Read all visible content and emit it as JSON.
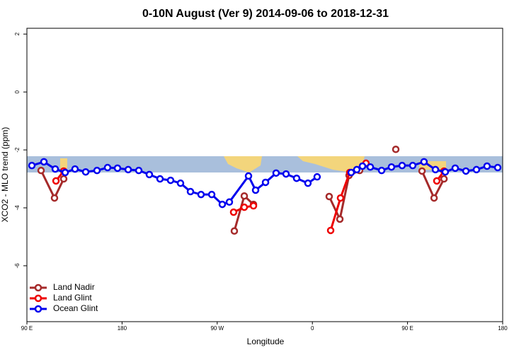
{
  "chart_data": {
    "type": "line",
    "title": "0-10N August (Ver 9)   2014-09-06 to 2018-12-31",
    "x_label": "Longitude",
    "y_label": "XCO2 - MLO trend (ppm)",
    "xlim": [
      90,
      540
    ],
    "xticks": [
      {
        "value": 90,
        "label": "90 E"
      },
      180,
      {
        "value": 270,
        "label": "90 W"
      },
      {
        "value": 360,
        "label": "0"
      },
      {
        "value": 450,
        "label": "90 E"
      },
      {
        "value": 540,
        "label": "180"
      }
    ],
    "ylim": [
      -7.93,
      2.2
    ],
    "yticks": [
      2,
      0,
      -2,
      -4,
      -6
    ],
    "legend": "bottomleft",
    "series": [
      {
        "name": "Land Nadir",
        "color": "#a52a2a",
        "x": [
          103.4,
          116.1,
          124.8,
          null,
          286.2,
          295.6,
          304.3,
          null,
          375.9,
          386.0,
          394.7,
          404.7,
          null,
          438.9,
          null,
          463.7,
          475.1,
          484.5
        ],
        "values": [
          -2.71,
          -3.66,
          -3.0,
          null,
          -4.8,
          -3.59,
          -3.88,
          null,
          -3.61,
          -4.39,
          -2.88,
          -2.71,
          null,
          -1.98,
          null,
          -2.73,
          -3.66,
          -3.0
        ]
      },
      {
        "name": "Land Glint",
        "color": "#ee0000",
        "x": [
          117.5,
          124.8,
          null,
          285.5,
          295.6,
          304.3,
          null,
          377.3,
          386.6,
          395.3,
          410.7,
          null,
          477.7,
          484.5
        ],
        "values": [
          -3.07,
          -2.73,
          null,
          -4.15,
          -3.98,
          -3.93,
          null,
          -4.78,
          -3.66,
          -2.78,
          -2.46,
          null,
          -3.07,
          -2.73
        ]
      },
      {
        "name": "Ocean Glint",
        "color": "#0000ee",
        "x": [
          94.7,
          106.1,
          116.8,
          126.2,
          135.5,
          145.6,
          156.3,
          166.3,
          175.7,
          185.8,
          195.8,
          205.8,
          215.9,
          225.9,
          235.3,
          244.7,
          254.7,
          264.8,
          274.8,
          281.5,
          299.6,
          306.3,
          315.7,
          325.7,
          335.1,
          345.1,
          355.8,
          364.5,
          null,
          396.7,
          402.0,
          407.4,
          414.8,
          425.5,
          434.8,
          444.9,
          454.9,
          465.6,
          476.4,
          485.7,
          495.1,
          505.2,
          515.2,
          525.2,
          535.3
        ],
        "values": [
          -2.54,
          -2.41,
          -2.66,
          -2.78,
          -2.66,
          -2.76,
          -2.71,
          -2.61,
          -2.63,
          -2.68,
          -2.71,
          -2.85,
          -3.0,
          -3.05,
          -3.15,
          -3.44,
          -3.54,
          -3.54,
          -3.88,
          -3.8,
          -2.9,
          -3.39,
          -3.12,
          -2.8,
          -2.83,
          -2.98,
          -3.15,
          -2.93,
          null,
          -2.78,
          -2.68,
          -2.56,
          -2.59,
          -2.71,
          -2.59,
          -2.54,
          -2.54,
          -2.41,
          -2.68,
          -2.76,
          -2.63,
          -2.73,
          -2.68,
          -2.56,
          -2.61
        ]
      }
    ]
  }
}
